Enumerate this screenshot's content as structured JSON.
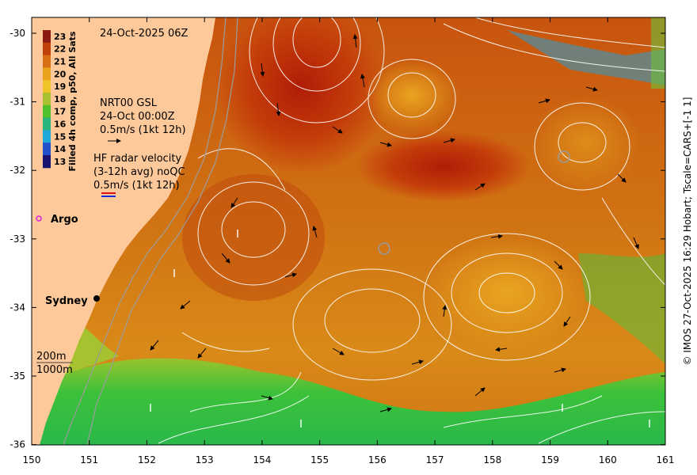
{
  "timestamp": "24-Oct-2025 06Z",
  "colorbar": {
    "title": "Filled 4h comp, p50, All Sats",
    "ticks": [
      "23",
      "22",
      "21",
      "20",
      "19",
      "18",
      "17",
      "16",
      "15",
      "14",
      "13"
    ],
    "colors": [
      "#8b1a10",
      "#c0400c",
      "#d86e14",
      "#e9a21c",
      "#efc32a",
      "#a9c030",
      "#4fbf2c",
      "#28b57c",
      "#1fa8d8",
      "#2450cc",
      "#1a1470"
    ]
  },
  "currents_legend": {
    "line1": "NRT00 GSL",
    "line2": "24-Oct 00:00Z",
    "line3": "0.5m/s (1kt 12h)"
  },
  "radar_legend": {
    "line1": "HF radar velocity",
    "line2": "(3-12h avg) noQC",
    "line3": "0.5m/s (1kt 12h)"
  },
  "argo_label": "Argo",
  "city_label": "Sydney",
  "isobaths": {
    "label1": "200m",
    "label2": "1000m"
  },
  "x_ticks": [
    "150",
    "151",
    "152",
    "153",
    "154",
    "155",
    "156",
    "157",
    "158",
    "159",
    "160",
    "161"
  ],
  "y_ticks": [
    "-30",
    "-31",
    "-32",
    "-33",
    "-34",
    "-35",
    "-36"
  ],
  "credit": "© IMOS 27-Oct-2025 16:29 Hobart; Tscale=CARS+[-1 1]",
  "colors": {
    "land": "#fdc99a",
    "warm_core": "#b82808",
    "cool_shelf": "#3cc43a"
  }
}
